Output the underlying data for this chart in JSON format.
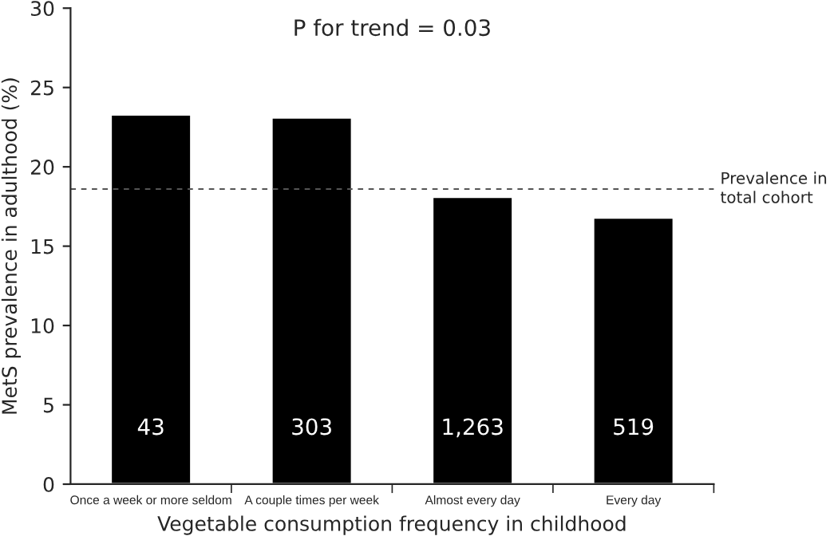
{
  "chart_data": {
    "type": "bar",
    "annotations": [
      "P for trend = 0.03",
      "43",
      "303",
      "1,263",
      "519"
    ],
    "xlabel": "Vegetable consumption frequency in childhood",
    "ylabel": "MetS prevalence in adulthood (%)",
    "categories": [
      "Once a week or more seldom",
      "A couple times per week",
      "Almost every day",
      "Every day"
    ],
    "values": [
      23.3,
      23.1,
      18.1,
      16.8
    ],
    "color": "#000000",
    "ylim": [
      0,
      30
    ],
    "yticks": [
      0,
      5,
      10,
      15,
      20,
      25,
      30
    ],
    "ref_lines": [
      {
        "axis": "y",
        "value": 18.6,
        "label": "Prevalence in\ntotal cohort",
        "color": "#555555",
        "line_style": "dashed"
      }
    ],
    "grid": false,
    "legend": false
  }
}
